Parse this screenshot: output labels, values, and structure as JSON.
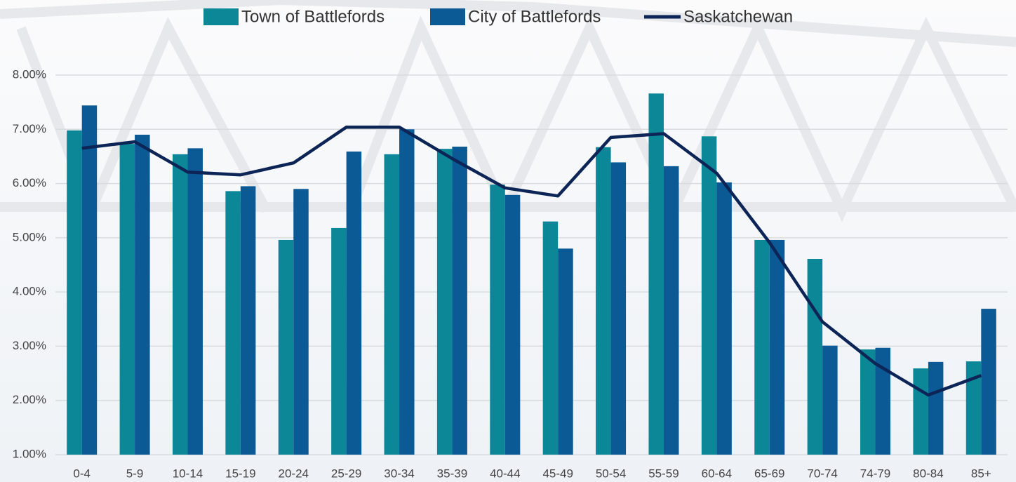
{
  "chart_data": {
    "type": "bar",
    "categories": [
      "0-4",
      "5-9",
      "10-14",
      "15-19",
      "20-24",
      "25-29",
      "30-34",
      "35-39",
      "40-44",
      "45-49",
      "50-54",
      "55-59",
      "60-64",
      "65-69",
      "70-74",
      "74-79",
      "80-84",
      "85+"
    ],
    "series": [
      {
        "name": "Town of Battlefords",
        "type": "bar",
        "color": "#0b8797",
        "values": [
          6.98,
          6.73,
          6.54,
          5.86,
          4.96,
          5.18,
          6.54,
          6.64,
          5.98,
          5.3,
          6.67,
          7.66,
          6.87,
          4.96,
          4.61,
          2.94,
          2.59,
          2.72
        ]
      },
      {
        "name": "City of Battlefords",
        "type": "bar",
        "color": "#0b5a96",
        "values": [
          7.44,
          6.9,
          6.65,
          5.95,
          5.9,
          6.59,
          7.0,
          6.68,
          5.79,
          4.8,
          6.39,
          6.32,
          6.02,
          4.96,
          3.01,
          2.97,
          2.71,
          3.69
        ]
      },
      {
        "name": "Saskatchewan",
        "type": "line",
        "color": "#0c2456",
        "values": [
          6.65,
          6.77,
          6.21,
          6.16,
          6.38,
          7.04,
          7.04,
          6.46,
          5.92,
          5.77,
          6.85,
          6.92,
          6.19,
          4.91,
          3.45,
          2.68,
          2.1,
          2.46
        ]
      }
    ],
    "ylim": [
      1,
      8
    ],
    "yticks": [
      {
        "value": 1,
        "label": "1.00%"
      },
      {
        "value": 2,
        "label": "2.00%"
      },
      {
        "value": 3,
        "label": "3.00%"
      },
      {
        "value": 4,
        "label": "4.00%"
      },
      {
        "value": 5,
        "label": "5.00%"
      },
      {
        "value": 6,
        "label": "6.00%"
      },
      {
        "value": 7,
        "label": "7.00%"
      },
      {
        "value": 8,
        "label": "8.00%"
      }
    ],
    "grid": true,
    "legend": "top"
  }
}
